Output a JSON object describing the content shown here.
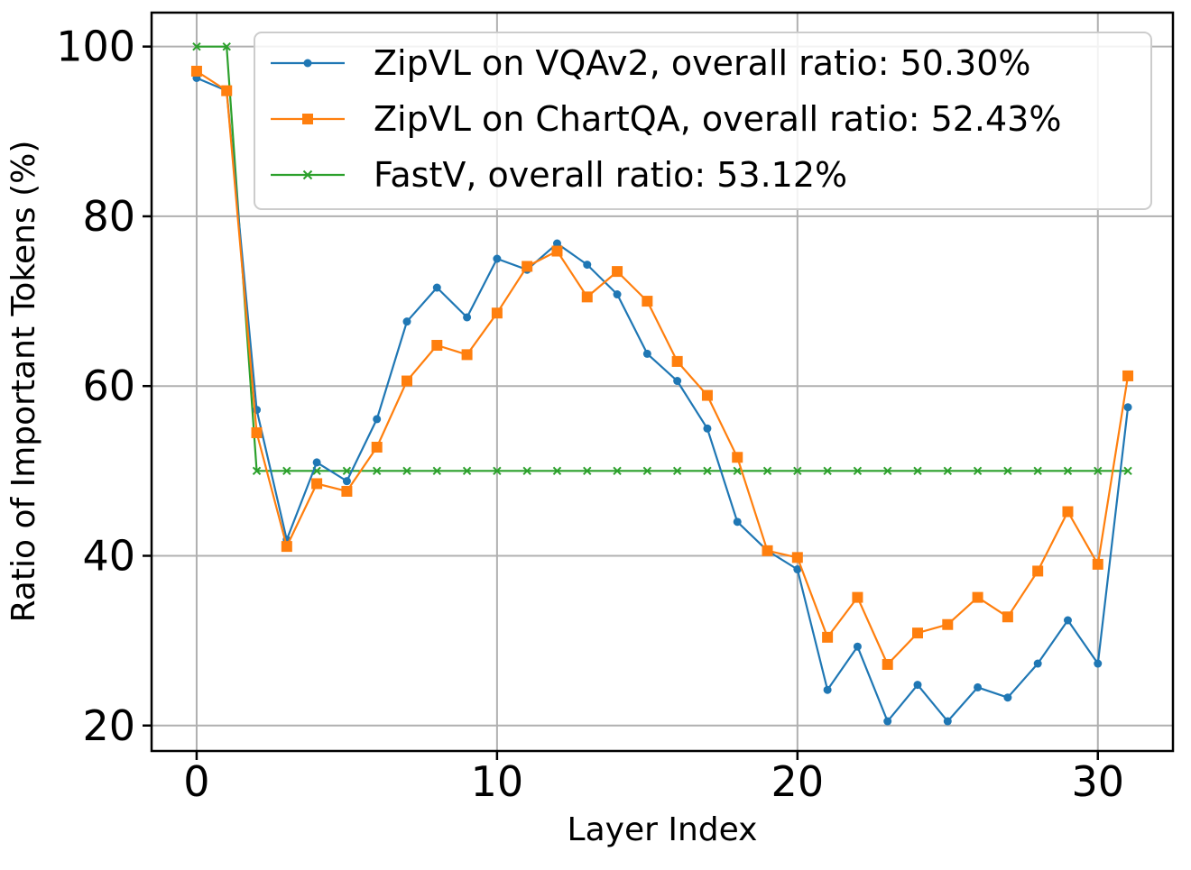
{
  "chart_data": {
    "type": "line",
    "title": "",
    "xlabel": "Layer Index",
    "ylabel": "Ratio of Important Tokens (%)",
    "xlim": [
      -1.5,
      32.5
    ],
    "ylim": [
      17,
      104
    ],
    "xticks": [
      0,
      10,
      20,
      30
    ],
    "yticks": [
      20,
      40,
      60,
      80,
      100
    ],
    "grid": true,
    "legend_position": "top-right",
    "series": [
      {
        "name": "ZipVL on VQAv2, overall ratio: 50.30%",
        "color": "#1f77b4",
        "marker": "dot",
        "x": [
          0,
          1,
          2,
          3,
          4,
          5,
          6,
          7,
          8,
          9,
          10,
          11,
          12,
          13,
          14,
          15,
          16,
          17,
          18,
          19,
          20,
          21,
          22,
          23,
          24,
          25,
          26,
          27,
          28,
          29,
          30,
          31
        ],
        "values": [
          96.3,
          94.8,
          57.2,
          41.9,
          51.0,
          48.8,
          56.1,
          67.6,
          71.6,
          68.1,
          75.0,
          73.7,
          76.8,
          74.3,
          70.8,
          63.8,
          60.6,
          55.0,
          44.0,
          40.6,
          38.4,
          24.2,
          29.3,
          20.5,
          24.8,
          20.5,
          24.5,
          23.3,
          27.3,
          32.4,
          27.3,
          57.5
        ]
      },
      {
        "name": "ZipVL on ChartQA, overall ratio: 52.43%",
        "color": "#ff7f0e",
        "marker": "square",
        "x": [
          0,
          1,
          2,
          3,
          4,
          5,
          6,
          7,
          8,
          9,
          10,
          11,
          12,
          13,
          14,
          15,
          16,
          17,
          18,
          19,
          20,
          21,
          22,
          23,
          24,
          25,
          26,
          27,
          28,
          29,
          30,
          31
        ],
        "values": [
          97.1,
          94.8,
          54.5,
          41.1,
          48.5,
          47.6,
          52.8,
          60.6,
          64.8,
          63.7,
          68.6,
          74.1,
          75.9,
          70.5,
          73.5,
          70.0,
          62.9,
          58.9,
          51.6,
          40.6,
          39.8,
          30.4,
          35.1,
          27.2,
          30.9,
          31.9,
          35.1,
          32.8,
          38.2,
          45.2,
          39.0,
          61.2
        ]
      },
      {
        "name": "FastV, overall ratio: 53.12%",
        "color": "#2ca02c",
        "marker": "x",
        "x": [
          0,
          1,
          2,
          3,
          4,
          5,
          6,
          7,
          8,
          9,
          10,
          11,
          12,
          13,
          14,
          15,
          16,
          17,
          18,
          19,
          20,
          21,
          22,
          23,
          24,
          25,
          26,
          27,
          28,
          29,
          30,
          31
        ],
        "values": [
          100,
          100,
          50,
          50,
          50,
          50,
          50,
          50,
          50,
          50,
          50,
          50,
          50,
          50,
          50,
          50,
          50,
          50,
          50,
          50,
          50,
          50,
          50,
          50,
          50,
          50,
          50,
          50,
          50,
          50,
          50,
          50
        ]
      }
    ]
  }
}
